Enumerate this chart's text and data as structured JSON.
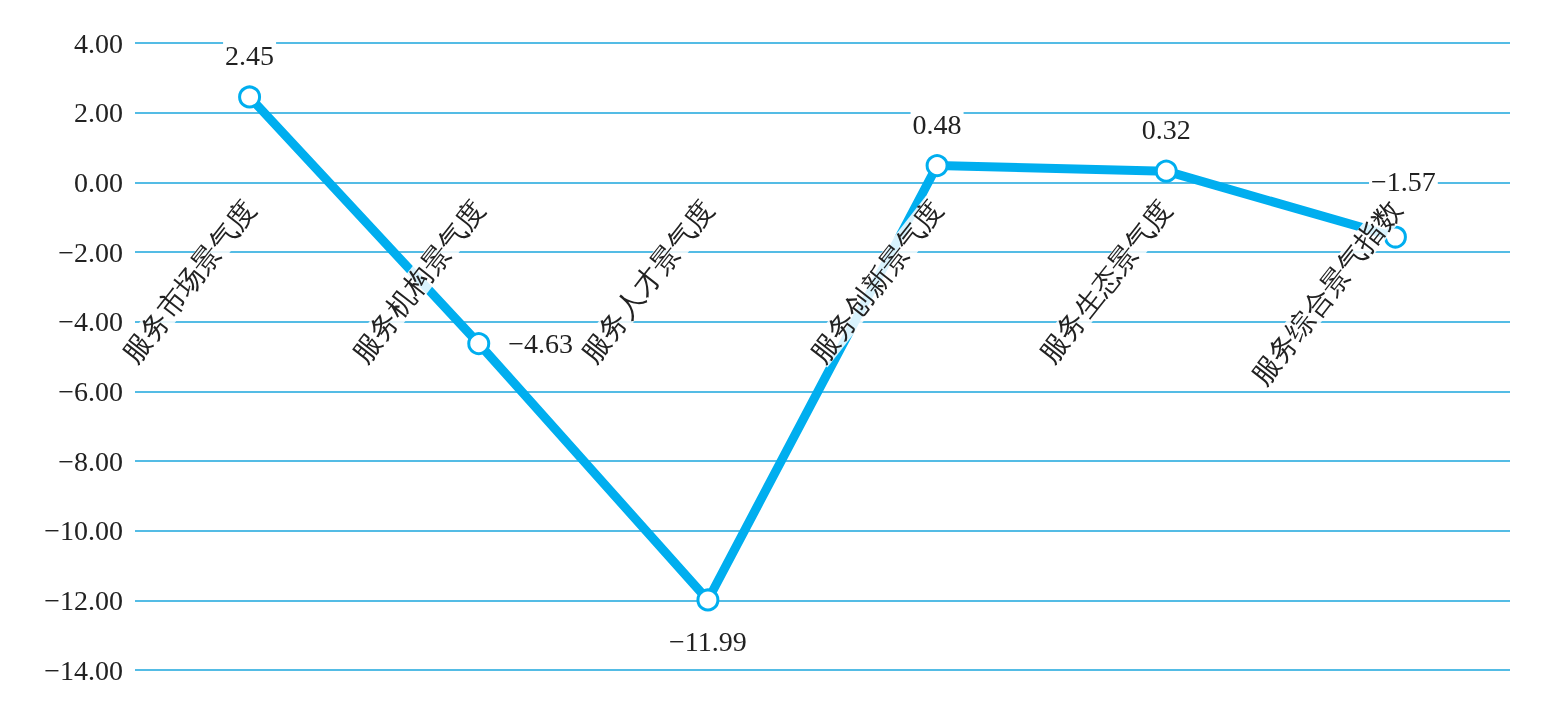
{
  "chart_data": {
    "type": "line",
    "categories": [
      "服务市场景气度",
      "服务机构景气度",
      "服务人才景气度",
      "服务创新景气度",
      "服务生态景气度",
      "服务综合景气指数"
    ],
    "series": [
      {
        "color": "#00aeef",
        "values": [
          2.45,
          -4.63,
          -11.99,
          0.48,
          0.32,
          -1.57
        ],
        "value_labels": [
          "2.45",
          "−4.63",
          "−11.99",
          "0.48",
          "0.32",
          "−1.57"
        ]
      }
    ],
    "ylim": [
      -14,
      4
    ],
    "yticks": [
      {
        "value": -14,
        "label": "−14.00"
      },
      {
        "value": -12,
        "label": "−12.00"
      },
      {
        "value": -10,
        "label": "−10.00"
      },
      {
        "value": -8,
        "label": "−8.00"
      },
      {
        "value": -6,
        "label": "−6.00"
      },
      {
        "value": -4,
        "label": "−4.00"
      },
      {
        "value": -2,
        "label": "−2.00"
      },
      {
        "value": 0,
        "label": "0.00"
      },
      {
        "value": 2,
        "label": "2.00"
      },
      {
        "value": 4,
        "label": "4.00"
      }
    ],
    "grid": "y",
    "marker": "circle",
    "line_style": "solid"
  }
}
